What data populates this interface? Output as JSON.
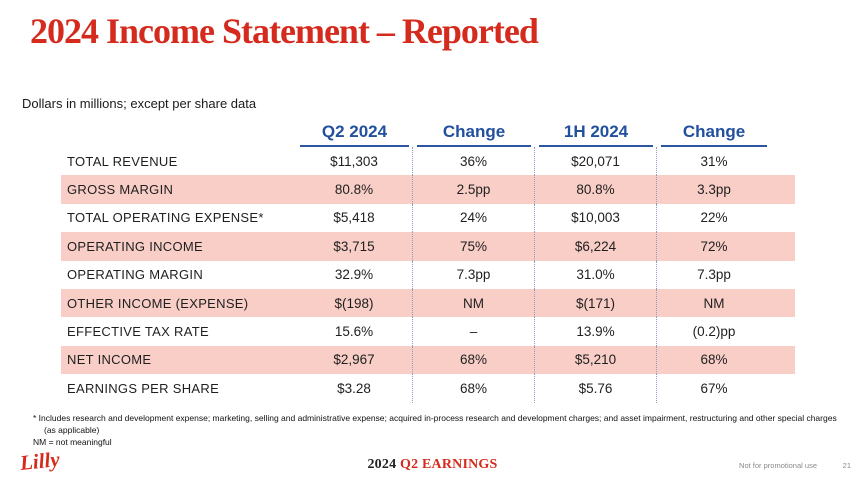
{
  "title": "2024 Income Statement – Reported",
  "subtitle": "Dollars in millions; except per share data",
  "colors": {
    "accent_red": "#D52B1E",
    "header_blue": "#21509E",
    "row_pink": "#F8CEC7"
  },
  "table": {
    "columns": [
      "Q2 2024",
      "Change",
      "1H 2024",
      "Change"
    ],
    "rows": [
      {
        "label": "TOTAL REVENUE",
        "values": [
          "$11,303",
          "36%",
          "$20,071",
          "31%"
        ]
      },
      {
        "label": "GROSS MARGIN",
        "values": [
          "80.8%",
          "2.5pp",
          "80.8%",
          "3.3pp"
        ]
      },
      {
        "label": "TOTAL OPERATING EXPENSE*",
        "values": [
          "$5,418",
          "24%",
          "$10,003",
          "22%"
        ]
      },
      {
        "label": "OPERATING INCOME",
        "values": [
          "$3,715",
          "75%",
          "$6,224",
          "72%"
        ]
      },
      {
        "label": "OPERATING MARGIN",
        "values": [
          "32.9%",
          "7.3pp",
          "31.0%",
          "7.3pp"
        ]
      },
      {
        "label": "OTHER INCOME (EXPENSE)",
        "values": [
          "$(198)",
          "NM",
          "$(171)",
          "NM"
        ]
      },
      {
        "label": "EFFECTIVE TAX RATE",
        "values": [
          "15.6%",
          "–",
          "13.9%",
          "(0.2)pp"
        ]
      },
      {
        "label": "NET INCOME",
        "values": [
          "$2,967",
          "68%",
          "$5,210",
          "68%"
        ]
      },
      {
        "label": "EARNINGS PER SHARE",
        "values": [
          "$3.28",
          "68%",
          "$5.76",
          "67%"
        ]
      }
    ]
  },
  "footnotes": {
    "line1": "* Includes research and development expense; marketing, selling and administrative expense; acquired in-process research and development charges; and asset impairment, restructuring and other special charges",
    "line2": "(as applicable)",
    "line3": "NM = not meaningful"
  },
  "footer": {
    "logo": "Lilly",
    "event_year": "2024",
    "event_name": "Q2 EARNINGS",
    "disclaimer": "Not for promotional use",
    "page_number": "21"
  }
}
